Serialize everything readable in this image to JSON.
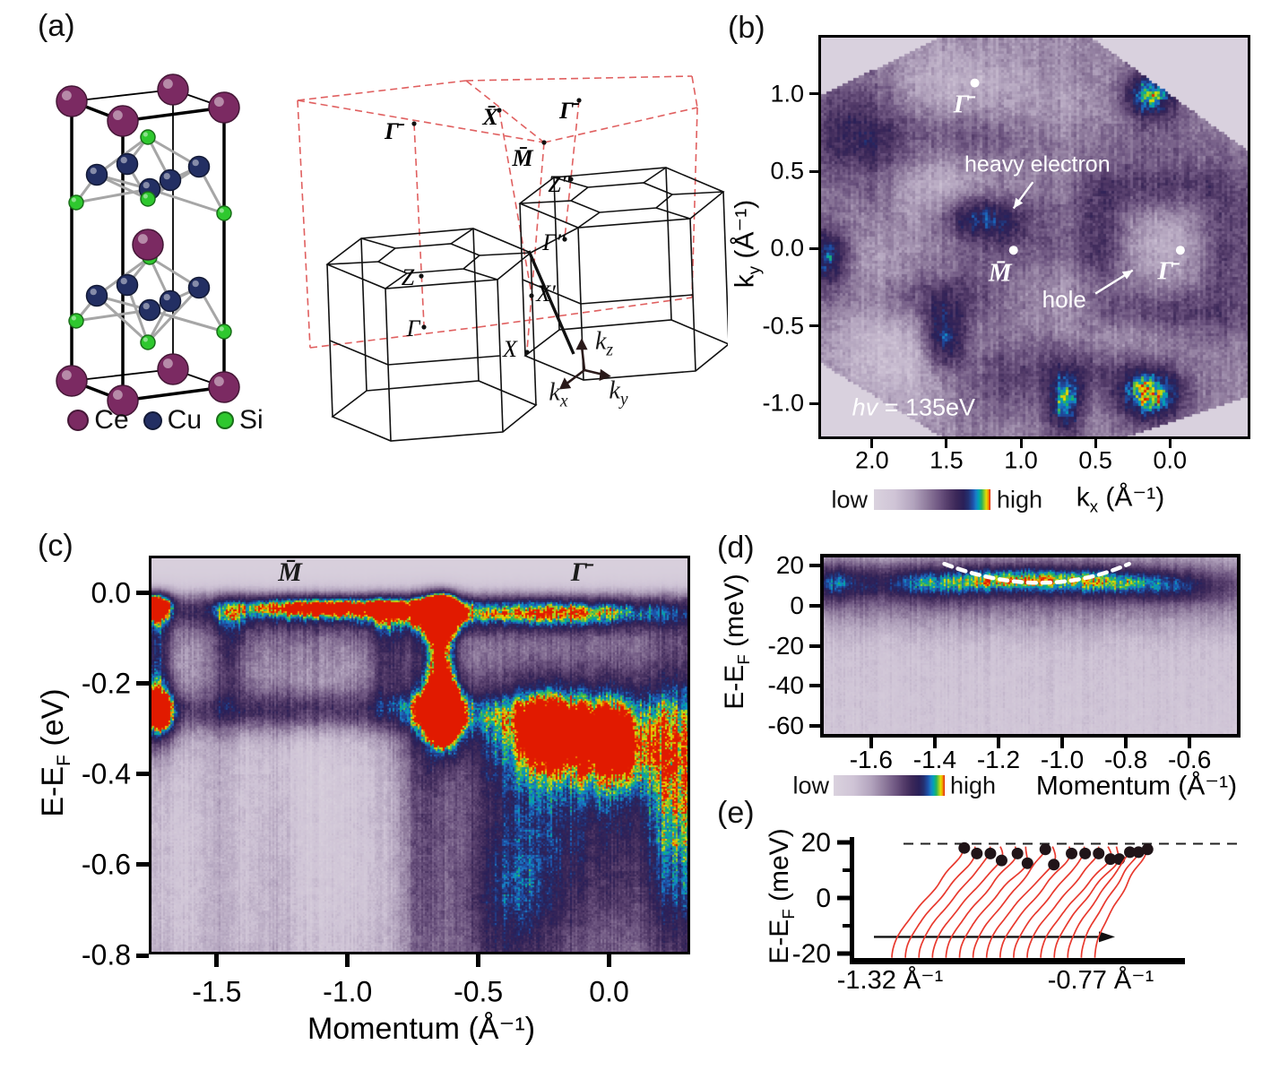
{
  "colormap": {
    "low_label": "low",
    "high_label": "high",
    "background": "#d9d1de",
    "stops": [
      [
        0,
        "#dad2de"
      ],
      [
        0.18,
        "#cfc4d6"
      ],
      [
        0.34,
        "#b2a3bd"
      ],
      [
        0.46,
        "#8e7a9c"
      ],
      [
        0.56,
        "#6e5681"
      ],
      [
        0.64,
        "#523a68"
      ],
      [
        0.71,
        "#3a2758"
      ],
      [
        0.77,
        "#2a2058"
      ],
      [
        0.81,
        "#243070"
      ],
      [
        0.85,
        "#1e52aa"
      ],
      [
        0.875,
        "#1b7cc8"
      ],
      [
        0.9,
        "#00a4b4"
      ],
      [
        0.925,
        "#28b25c"
      ],
      [
        0.945,
        "#86c930"
      ],
      [
        0.965,
        "#e6df00"
      ],
      [
        0.982,
        "#f29200"
      ],
      [
        1,
        "#e11a00"
      ]
    ]
  },
  "panel_a": {
    "label": "(a)",
    "legend": [
      {
        "name": "Ce",
        "color": "#7b2a62"
      },
      {
        "name": "Cu",
        "color": "#232f63"
      },
      {
        "name": "Si",
        "color": "#2ec82e"
      }
    ],
    "bz": {
      "points": [
        "Γ̄",
        "X̄",
        "Γ̄",
        "M̄",
        "Z″",
        "Γ″",
        "Z",
        "X′",
        "Γ",
        "X"
      ],
      "axes": [
        {
          "base": "k",
          "sub": "z"
        },
        {
          "base": "k",
          "sub": "x"
        },
        {
          "base": "k",
          "sub": "y"
        }
      ]
    }
  },
  "panel_b": {
    "label": "(b)",
    "x_axis": {
      "base": "k",
      "sub": "x",
      "unit": " (Å⁻¹)",
      "ticks": [
        "2.0",
        "1.5",
        "1.0",
        "0.5",
        "0.0"
      ]
    },
    "y_axis": {
      "base": "k",
      "sub": "y",
      "unit": " (Å⁻¹)",
      "ticks": [
        "1.0",
        "0.5",
        "0.0",
        "-0.5",
        "-1.0"
      ]
    },
    "chart_data": {
      "type": "heatmap",
      "x_range": [
        2.36,
        -0.54
      ],
      "y_range": [
        1.38,
        -1.23
      ],
      "base": 0.42,
      "noise": 0.1,
      "streak": 0.05,
      "clip": [
        [
          2.36,
          0.98
        ],
        [
          1.51,
          1.38
        ],
        [
          0.55,
          1.38
        ],
        [
          -0.54,
          0.62
        ],
        [
          -0.54,
          -0.95
        ],
        [
          0.33,
          -1.23
        ],
        [
          1.51,
          -1.23
        ],
        [
          2.36,
          -0.73
        ]
      ],
      "features": [
        {
          "x": 0.13,
          "y": 1.0,
          "sx": 0.14,
          "sy": 0.11,
          "a": 0.52
        },
        {
          "x": 2.3,
          "y": -0.05,
          "sx": 0.12,
          "sy": 0.14,
          "a": 0.44
        },
        {
          "x": 1.28,
          "y": 0.2,
          "sx": 0.2,
          "sy": 0.1,
          "a": 0.4
        },
        {
          "x": 1.52,
          "y": -0.58,
          "sx": 0.1,
          "sy": 0.15,
          "a": 0.44
        },
        {
          "x": 0.7,
          "y": -1.0,
          "sx": 0.08,
          "sy": 0.16,
          "a": 0.48
        },
        {
          "x": 0.13,
          "y": -0.95,
          "sx": 0.17,
          "sy": 0.13,
          "a": 0.54
        },
        {
          "x": 1.05,
          "y": 0.72,
          "sx": 0.85,
          "sy": 0.14,
          "a": 0.2
        },
        {
          "x": 2.1,
          "y": 0.75,
          "sx": 0.25,
          "sy": 0.3,
          "a": 0.22
        },
        {
          "x": 1.05,
          "y": -0.02,
          "sx": 0.4,
          "sy": 0.3,
          "a": 0.16
        },
        {
          "x": 0.05,
          "y": 0.4,
          "sx": 0.35,
          "sy": 0.12,
          "a": 0.22
        },
        {
          "x": 0.05,
          "y": -0.42,
          "sx": 0.35,
          "sy": 0.12,
          "a": 0.22
        },
        {
          "x": 0.45,
          "y": 0.05,
          "sx": 0.12,
          "sy": 0.3,
          "a": 0.2
        },
        {
          "x": -0.4,
          "y": 0.0,
          "sx": 0.15,
          "sy": 0.35,
          "a": 0.2
        },
        {
          "x": 1.7,
          "y": -0.33,
          "sx": 0.45,
          "sy": 0.12,
          "a": 0.2
        },
        {
          "x": 0.45,
          "y": -0.75,
          "sx": 0.3,
          "sy": 0.12,
          "a": 0.18
        },
        {
          "x": 1.1,
          "y": -0.85,
          "sx": 0.25,
          "sy": 0.18,
          "a": 0.18
        },
        {
          "x": 1.95,
          "y": 0.25,
          "sx": 0.18,
          "sy": 0.25,
          "a": 0.18
        },
        {
          "x": 1.6,
          "y": 0.35,
          "sx": 0.35,
          "sy": 0.22,
          "a": -0.2
        },
        {
          "x": 0.7,
          "y": 0.75,
          "sx": 0.3,
          "sy": 0.18,
          "a": -0.18
        },
        {
          "x": 1.45,
          "y": 1.05,
          "sx": 0.3,
          "sy": 0.18,
          "a": -0.16
        },
        {
          "x": 2.0,
          "y": -0.05,
          "sx": 0.18,
          "sy": 0.3,
          "a": -0.16
        },
        {
          "x": 0.8,
          "y": -0.3,
          "sx": 0.3,
          "sy": 0.14,
          "a": -0.16
        },
        {
          "x": 1.85,
          "y": -0.7,
          "sx": 0.3,
          "sy": 0.25,
          "a": -0.2
        },
        {
          "x": 0.3,
          "y": -0.6,
          "sx": 0.25,
          "sy": 0.12,
          "a": -0.14
        },
        {
          "x": 0.05,
          "y": 0.05,
          "sx": 0.18,
          "sy": 0.18,
          "a": -0.14
        }
      ],
      "annotations": [
        {
          "type": "dot",
          "x": 1.31,
          "y": 1.07
        },
        {
          "type": "text",
          "text": "Γ̄",
          "x": 1.4,
          "y": 0.93,
          "size": 29,
          "italic": true,
          "serif": true,
          "bold": true,
          "color": "#ffffff"
        },
        {
          "type": "dot",
          "x": 1.05,
          "y": -0.01
        },
        {
          "type": "text",
          "text": "M̄",
          "x": 1.14,
          "y": -0.16,
          "size": 29,
          "italic": true,
          "serif": true,
          "bold": true,
          "color": "#ffffff"
        },
        {
          "type": "dot",
          "x": -0.07,
          "y": -0.01
        },
        {
          "type": "text",
          "text": "Γ̄",
          "x": 0.03,
          "y": -0.15,
          "size": 29,
          "italic": true,
          "serif": true,
          "bold": true,
          "color": "#ffffff"
        },
        {
          "type": "text",
          "text": "heavy electron",
          "x": 0.89,
          "y": 0.54,
          "size": 25,
          "color": "#ffffff"
        },
        {
          "type": "arrow",
          "x1": 0.92,
          "y1": 0.43,
          "x2": 1.05,
          "y2": 0.26,
          "color": "#ffffff"
        },
        {
          "type": "text",
          "text": "hole",
          "x": 0.71,
          "y": -0.33,
          "size": 26,
          "color": "#ffffff"
        },
        {
          "type": "arrow",
          "x1": 0.5,
          "y1": -0.29,
          "x2": 0.25,
          "y2": -0.14,
          "color": "#ffffff"
        },
        {
          "type": "text",
          "text": "hv = 135eV",
          "x": 1.72,
          "y": -1.03,
          "size": 27,
          "italic_prefix": 2,
          "color": "#ffffff"
        }
      ]
    }
  },
  "panel_c": {
    "label": "(c)",
    "x_axis": {
      "label": "Momentum (Å⁻¹)",
      "ticks": [
        "-1.5",
        "-1.0",
        "-0.5",
        "0.0"
      ]
    },
    "y_axis": {
      "base": "E-E",
      "sub": "F",
      "unit": " (eV)",
      "ticks": [
        "0.0",
        "-0.2",
        "-0.4",
        "-0.6",
        "-0.8"
      ]
    },
    "chart_data": {
      "type": "heatmap",
      "x_range": [
        -1.76,
        0.31
      ],
      "y_range": [
        0.083,
        -0.798
      ],
      "base": 0.35,
      "noise": 0.09,
      "streak": 0.06,
      "fermi_cut": {
        "y": 0.008,
        "w": 0.013
      },
      "features": [
        {
          "x": -1.74,
          "y": -0.02,
          "sx": 0.05,
          "sy": 0.025,
          "a": 0.65
        },
        {
          "x": -1.73,
          "y": -0.15,
          "sx": 0.04,
          "sy": 0.12,
          "a": 0.45
        },
        {
          "x": -1.1,
          "y": -0.025,
          "sx": 0.28,
          "sy": 0.022,
          "a": 0.5
        },
        {
          "x": -0.64,
          "y": -0.03,
          "sx": 0.05,
          "sy": 0.05,
          "a": 0.6
        },
        {
          "x": -0.64,
          "y": -0.16,
          "sx": 0.045,
          "sy": 0.1,
          "a": 0.48
        },
        {
          "x": -0.63,
          "y": -0.27,
          "sx": 0.05,
          "sy": 0.05,
          "a": 0.68
        },
        {
          "x": -0.15,
          "y": -0.04,
          "sx": 0.38,
          "sy": 0.03,
          "a": 0.48
        },
        {
          "x": -1.72,
          "y": -0.27,
          "sx": 0.06,
          "sy": 0.05,
          "a": 0.5
        },
        {
          "x": -1.15,
          "y": -0.26,
          "sx": 0.5,
          "sy": 0.035,
          "a": 0.42
        },
        {
          "x": -0.15,
          "y": -0.3,
          "sx": 0.35,
          "sy": 0.1,
          "a": 0.48
        },
        {
          "x": -0.24,
          "y": -0.3,
          "sx": 0.08,
          "sy": 0.06,
          "a": 0.22
        },
        {
          "x": 0.02,
          "y": -0.34,
          "sx": 0.08,
          "sy": 0.08,
          "a": 0.22
        },
        {
          "x": 0.28,
          "y": -0.5,
          "sx": 0.1,
          "sy": 0.28,
          "a": 0.42
        },
        {
          "x": -0.12,
          "y": -0.55,
          "sx": 0.3,
          "sy": 0.2,
          "a": 0.35
        },
        {
          "x": -0.4,
          "y": -0.7,
          "sx": 0.15,
          "sy": 0.2,
          "a": 0.3
        },
        {
          "x": -1.0,
          "y": -0.045,
          "sx": 0.8,
          "sy": 0.035,
          "a": 0.3
        },
        {
          "x": -0.72,
          "y": -0.5,
          "sx": 0.07,
          "sy": 0.4,
          "a": 0.28
        },
        {
          "x": -1.45,
          "y": -0.13,
          "sx": 0.05,
          "sy": 0.1,
          "a": 0.28
        },
        {
          "x": -0.85,
          "y": -0.13,
          "sx": 0.05,
          "sy": 0.1,
          "a": 0.25
        },
        {
          "x": -1.15,
          "y": -0.12,
          "sx": 0.28,
          "sy": 0.07,
          "a": 0.12
        },
        {
          "x": -1.5,
          "y": -0.55,
          "sx": 0.045,
          "sy": 0.3,
          "a": 0.16
        },
        {
          "x": -1.27,
          "y": -0.6,
          "sx": 0.05,
          "sy": 0.3,
          "a": 0.12
        },
        {
          "x": -1.1,
          "y": -0.6,
          "sx": 0.33,
          "sy": 0.25,
          "a": -0.22
        },
        {
          "x": -1.62,
          "y": -0.6,
          "sx": 0.12,
          "sy": 0.25,
          "a": -0.14
        },
        {
          "x": -1.15,
          "y": -0.35,
          "sx": 0.3,
          "sy": 0.1,
          "a": -0.1
        }
      ],
      "annotations": [
        {
          "type": "text",
          "text": "M̄",
          "x": -1.22,
          "y": 0.046,
          "size": 30,
          "italic": true,
          "serif": true,
          "bold": true,
          "color": "#1a1a1a"
        },
        {
          "type": "text",
          "text": "Γ̄",
          "x": -0.115,
          "y": 0.046,
          "size": 30,
          "italic": true,
          "serif": true,
          "bold": true,
          "color": "#1a1a1a"
        }
      ]
    }
  },
  "panel_d": {
    "label": "(d)",
    "x_axis": {
      "label": "Momentum (Å⁻¹)",
      "ticks": [
        "-1.6",
        "-1.4",
        "-1.2",
        "-1.0",
        "-0.8",
        "-0.6"
      ]
    },
    "y_axis": {
      "base": "E-E",
      "sub": "F",
      "unit": " (meV)",
      "ticks": [
        "20",
        "0",
        "-20",
        "-40",
        "-60"
      ]
    },
    "chart_data": {
      "type": "heatmap",
      "x_range": [
        -1.76,
        -0.44
      ],
      "y_range": [
        26,
        -66
      ],
      "base": 0.13,
      "noise": 0.07,
      "streak": 0.05,
      "dashed_curve": [
        [
          -1.37,
          21
        ],
        [
          -1.07,
          11.5
        ],
        [
          -0.79,
          21
        ]
      ],
      "features": [
        {
          "x": -1.1,
          "y": 13,
          "sx": 1.1,
          "sy": 11,
          "a": 0.3
        },
        {
          "x": -1.1,
          "y": 10,
          "sx": 0.75,
          "sy": 8,
          "a": 0.18
        },
        {
          "x": -1.08,
          "y": 14,
          "sx": 0.24,
          "sy": 6,
          "a": 0.34
        },
        {
          "x": -1.73,
          "y": 12,
          "sx": 0.07,
          "sy": 8,
          "a": 0.28
        },
        {
          "x": -1.45,
          "y": 11,
          "sx": 0.15,
          "sy": 7,
          "a": 0.18
        },
        {
          "x": -0.62,
          "y": 9,
          "sx": 0.1,
          "sy": 6,
          "a": 0.16
        },
        {
          "x": -0.8,
          "y": 11,
          "sx": 0.1,
          "sy": 6,
          "a": 0.14
        },
        {
          "x": -1.1,
          "y": -6,
          "sx": 1.1,
          "sy": 9,
          "a": 0.16
        },
        {
          "x": -1.1,
          "y": -30,
          "sx": 1.1,
          "sy": 25,
          "a": 0.04
        }
      ],
      "annotations": []
    }
  },
  "panel_e": {
    "label": "(e)",
    "y_axis": {
      "base": "E-E",
      "sub": "F",
      "unit": " (meV)"
    },
    "chart_data": {
      "type": "edc_stack",
      "y_ticks": [
        "20",
        "0",
        "-20"
      ],
      "x_point_labels": [
        "-1.32 Å⁻¹",
        "-0.77 Å⁻¹"
      ],
      "n_curves": 16,
      "peak_energies_meV": [
        18,
        16,
        16,
        13.5,
        16,
        12.5,
        17.5,
        12,
        16,
        16,
        16,
        14,
        14,
        16.5,
        16.5,
        17.5
      ],
      "dashed_line_meV": 19.5,
      "arrow_meV": -14,
      "curve_color": "#e8392e",
      "dot_color": "#201418"
    }
  }
}
